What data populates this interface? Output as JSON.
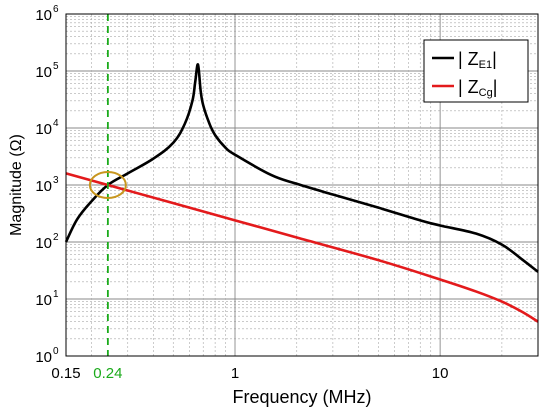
{
  "chart_data": {
    "type": "line",
    "title": "",
    "xlabel": "Frequency (MHz)",
    "ylabel": "Magnitude (Ω)",
    "x_scale": "log",
    "y_scale": "log",
    "xlim": [
      0.15,
      30
    ],
    "ylim": [
      1,
      1000000
    ],
    "x_tick_labels": [
      {
        "value": 0.15,
        "label": "0.15"
      },
      {
        "value": 0.24,
        "label": "0.24",
        "color": "#1aaa1a"
      },
      {
        "value": 1,
        "label": "1"
      },
      {
        "value": 10,
        "label": "10"
      }
    ],
    "y_tick_labels": [
      {
        "value": 1,
        "base": "10",
        "exp": "0"
      },
      {
        "value": 10,
        "base": "10",
        "exp": "1"
      },
      {
        "value": 100,
        "base": "10",
        "exp": "2"
      },
      {
        "value": 1000,
        "base": "10",
        "exp": "3"
      },
      {
        "value": 10000,
        "base": "10",
        "exp": "4"
      },
      {
        "value": 100000,
        "base": "10",
        "exp": "5"
      },
      {
        "value": 1000000,
        "base": "10",
        "exp": "6"
      }
    ],
    "grid": true,
    "legend_position": "top-right",
    "series": [
      {
        "name": "|ZE1|",
        "legend": {
          "prefix": "| Z",
          "sub": "E1",
          "suffix": "|"
        },
        "color": "#000000",
        "x": [
          0.15,
          0.17,
          0.2,
          0.24,
          0.3,
          0.4,
          0.5,
          0.57,
          0.62,
          0.64,
          0.66,
          0.68,
          0.7,
          0.75,
          0.8,
          0.9,
          1.0,
          1.5,
          2,
          3,
          5,
          8,
          10,
          15,
          20,
          25,
          30
        ],
        "y": [
          100,
          250,
          520,
          1000,
          1600,
          2900,
          5500,
          12000,
          30000,
          65000,
          130000,
          45000,
          25000,
          12000,
          7500,
          4500,
          3400,
          1500,
          1050,
          680,
          400,
          240,
          195,
          140,
          90,
          50,
          30
        ]
      },
      {
        "name": "|ZCg|",
        "legend": {
          "prefix": "| Z",
          "sub": "Cg",
          "suffix": "|"
        },
        "color": "#e31a1c",
        "x": [
          0.15,
          0.24,
          0.5,
          1,
          2,
          5,
          10,
          15,
          20,
          25,
          30
        ],
        "y": [
          1600,
          1000,
          480,
          240,
          120,
          48,
          22,
          13.5,
          9,
          6,
          4
        ]
      }
    ],
    "annotations": {
      "marker_line": {
        "x": 0.24,
        "color": "#1aaa1a",
        "style": "dashed"
      },
      "ellipse": {
        "x": 0.24,
        "y": 1000,
        "color": "#c8961e"
      }
    }
  }
}
